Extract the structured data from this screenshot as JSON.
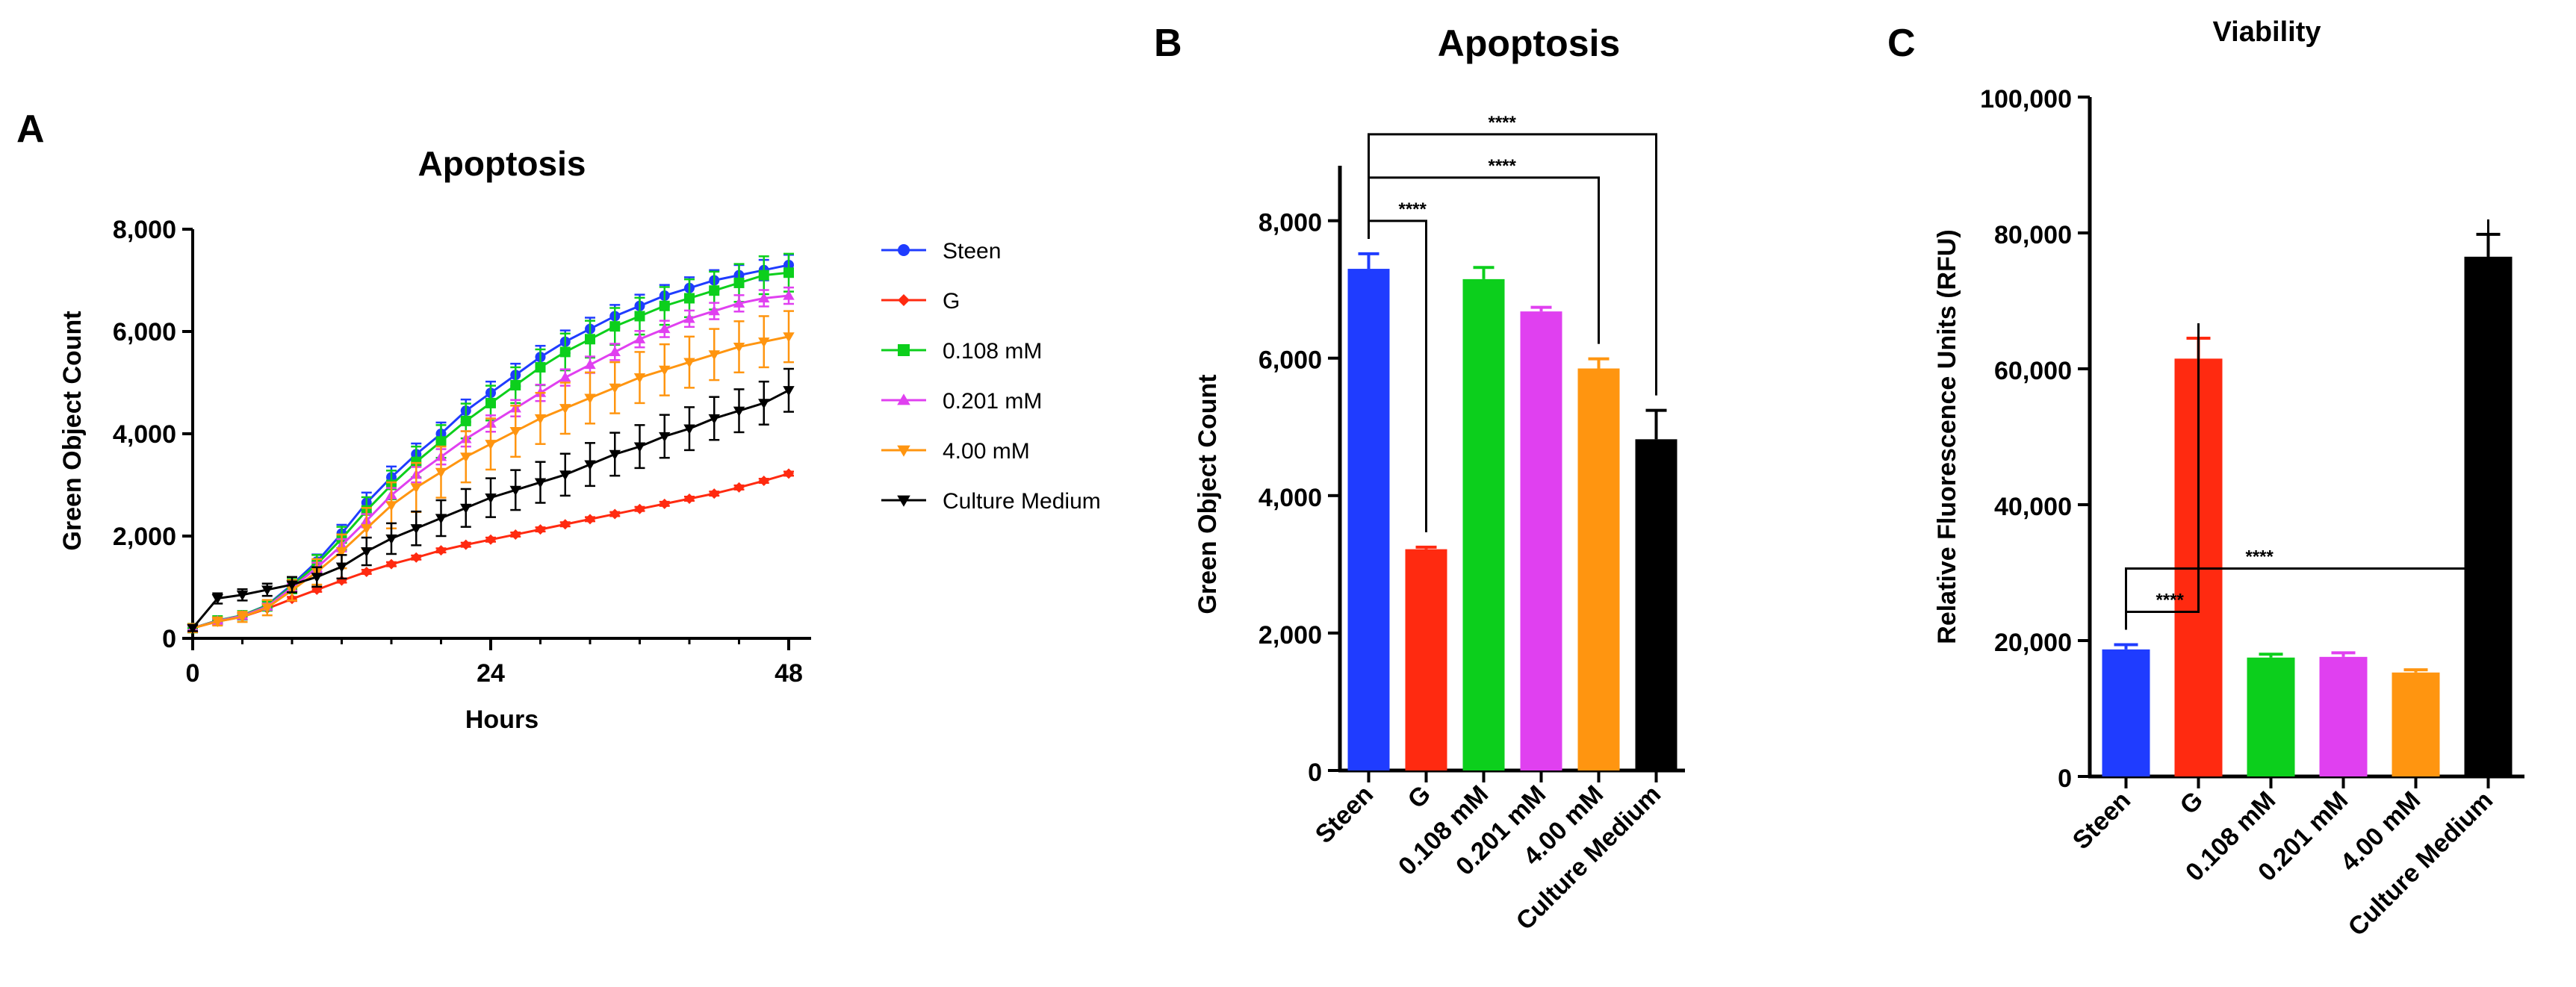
{
  "panels": {
    "a": {
      "letter": "A"
    },
    "b": {
      "letter": "B"
    },
    "c": {
      "letter": "C"
    }
  },
  "colors": {
    "Steen": "#1f3cff",
    "G": "#ff2a10",
    "0.108 mM": "#0ccf1c",
    "0.201 mM": "#e040f0",
    "4.00 mM": "#ff9510",
    "Culture Medium": "#000000"
  },
  "chart_data": [
    {
      "type": "line",
      "panel": "A",
      "title": "Apoptosis",
      "xlabel": "Hours",
      "ylabel": "Green Object Count",
      "xlim": [
        0,
        48
      ],
      "ylim": [
        0,
        8000
      ],
      "xticks": [
        0,
        24,
        48
      ],
      "xtick_labels": [
        "0",
        "24",
        "48"
      ],
      "yticks": [
        0,
        2000,
        4000,
        6000,
        8000
      ],
      "ytick_labels": [
        "0",
        "2,000",
        "4,000",
        "6,000",
        "8,000"
      ],
      "legend": "right",
      "x": [
        0,
        2,
        4,
        6,
        8,
        10,
        12,
        14,
        16,
        18,
        20,
        22,
        24,
        26,
        28,
        30,
        32,
        34,
        36,
        38,
        40,
        42,
        44,
        46,
        48
      ],
      "series": [
        {
          "name": "Steen",
          "marker": "circle",
          "values": [
            200,
            350,
            450,
            650,
            1050,
            1500,
            2050,
            2650,
            3150,
            3600,
            4000,
            4450,
            4800,
            5150,
            5500,
            5800,
            6050,
            6300,
            6500,
            6700,
            6850,
            7000,
            7100,
            7200,
            7300
          ],
          "errors": [
            50,
            50,
            60,
            80,
            110,
            140,
            170,
            200,
            210,
            210,
            220,
            220,
            220,
            220,
            220,
            220,
            220,
            220,
            220,
            210,
            210,
            200,
            200,
            200,
            200
          ]
        },
        {
          "name": "G",
          "marker": "diamond",
          "values": [
            200,
            330,
            420,
            580,
            770,
            950,
            1130,
            1300,
            1450,
            1580,
            1720,
            1830,
            1930,
            2030,
            2130,
            2230,
            2330,
            2430,
            2530,
            2630,
            2730,
            2830,
            2950,
            3080,
            3220
          ],
          "errors": [
            15,
            20,
            25,
            30,
            40,
            40,
            40,
            40,
            40,
            40,
            40,
            40,
            40,
            40,
            40,
            40,
            40,
            40,
            40,
            40,
            40,
            40,
            40,
            40,
            40
          ]
        },
        {
          "name": "0.108 mM",
          "marker": "square",
          "values": [
            200,
            350,
            450,
            640,
            1020,
            1450,
            1950,
            2500,
            3000,
            3450,
            3850,
            4250,
            4600,
            4950,
            5300,
            5600,
            5850,
            6100,
            6300,
            6500,
            6650,
            6800,
            6950,
            7100,
            7150
          ],
          "errors": [
            60,
            60,
            70,
            100,
            140,
            180,
            230,
            260,
            280,
            300,
            320,
            340,
            340,
            350,
            350,
            360,
            360,
            360,
            360,
            370,
            370,
            370,
            370,
            370,
            370
          ]
        },
        {
          "name": "0.201 mM",
          "marker": "triangle-up",
          "values": [
            200,
            340,
            440,
            620,
            990,
            1380,
            1820,
            2300,
            2800,
            3200,
            3550,
            3900,
            4200,
            4500,
            4800,
            5100,
            5350,
            5600,
            5850,
            6050,
            6250,
            6400,
            6550,
            6650,
            6700
          ],
          "errors": [
            40,
            40,
            50,
            60,
            80,
            100,
            120,
            130,
            140,
            150,
            150,
            150,
            160,
            160,
            160,
            160,
            160,
            160,
            160,
            160,
            160,
            160,
            160,
            160,
            160
          ]
        },
        {
          "name": "4.00 mM",
          "marker": "triangle-down",
          "values": [
            200,
            330,
            420,
            600,
            940,
            1300,
            1700,
            2150,
            2600,
            2950,
            3250,
            3550,
            3800,
            4050,
            4300,
            4500,
            4700,
            4900,
            5100,
            5250,
            5400,
            5550,
            5700,
            5800,
            5900
          ],
          "errors": [
            80,
            80,
            100,
            150,
            200,
            250,
            330,
            400,
            450,
            480,
            500,
            500,
            500,
            500,
            500,
            500,
            500,
            500,
            500,
            500,
            500,
            500,
            500,
            500,
            500
          ]
        },
        {
          "name": "Culture Medium",
          "marker": "triangle-down",
          "values": [
            200,
            780,
            850,
            950,
            1050,
            1200,
            1400,
            1700,
            1950,
            2150,
            2350,
            2550,
            2750,
            2900,
            3050,
            3200,
            3400,
            3600,
            3750,
            3950,
            4100,
            4300,
            4450,
            4600,
            4850
          ],
          "errors": [
            60,
            100,
            110,
            120,
            150,
            190,
            230,
            270,
            300,
            330,
            350,
            370,
            380,
            390,
            400,
            410,
            420,
            420,
            420,
            420,
            420,
            420,
            420,
            420,
            420
          ]
        }
      ]
    },
    {
      "type": "bar",
      "panel": "B",
      "title": "Apoptosis",
      "xlabel": "",
      "ylabel": "Green Object Count",
      "ylim": [
        0,
        8800
      ],
      "yticks": [
        0,
        2000,
        4000,
        6000,
        8000
      ],
      "ytick_labels": [
        "0",
        "2,000",
        "4,000",
        "6,000",
        "8,000"
      ],
      "categories": [
        "Steen",
        "G",
        "0.108 mM",
        "0.201 mM",
        "4.00 mM",
        "Culture Medium"
      ],
      "values": [
        7300,
        3220,
        7150,
        6680,
        5850,
        4820
      ],
      "errors": [
        220,
        30,
        170,
        60,
        140,
        420
      ],
      "significance": [
        {
          "from": 0,
          "to": 1,
          "label": "****"
        },
        {
          "from": 0,
          "to": 4,
          "label": "****"
        },
        {
          "from": 0,
          "to": 5,
          "label": "****"
        }
      ]
    },
    {
      "type": "bar",
      "panel": "C",
      "title": "Viability",
      "xlabel": "",
      "ylabel": "Relative Fluorescence Units (RFU)",
      "ylim": [
        0,
        100000
      ],
      "yticks": [
        0,
        20000,
        40000,
        60000,
        80000,
        100000
      ],
      "ytick_labels": [
        "0",
        "20,000",
        "40,000",
        "60,000",
        "80,000",
        "100,000"
      ],
      "categories": [
        "Steen",
        "G",
        "0.108 mM",
        "0.201 mM",
        "4.00 mM",
        "Culture Medium"
      ],
      "values": [
        18700,
        61500,
        17500,
        17600,
        15300,
        76500
      ],
      "errors": [
        700,
        3000,
        500,
        600,
        400,
        3300
      ],
      "significance": [
        {
          "from": 0,
          "to": 1,
          "label": "****"
        },
        {
          "from": 0,
          "to": 5,
          "label": "****"
        }
      ]
    }
  ]
}
